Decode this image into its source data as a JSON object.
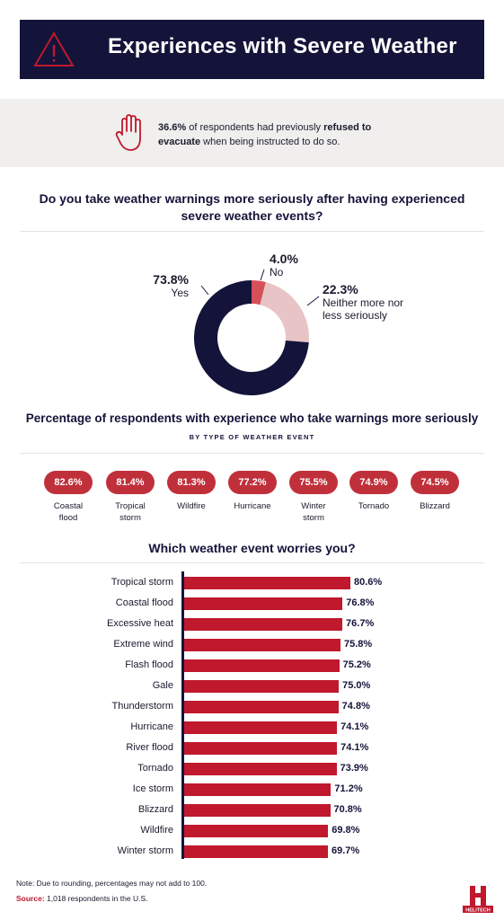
{
  "header": {
    "title": "Experiences with Severe Weather"
  },
  "callout": {
    "stat": "36.6%",
    "text_before": " of respondents had previously ",
    "bold_phrase": "refused to evacuate",
    "text_after": " when being instructed to do so."
  },
  "colors": {
    "navy": "#14143a",
    "red": "#c0182d",
    "pill_red": "#c0303b",
    "light_pink": "#e8c4c6",
    "donut_red": "#d6505a"
  },
  "chart_data": [
    {
      "type": "pie",
      "title": "Do you take weather warnings more seriously after having experienced severe weather events?",
      "slices": [
        {
          "label": "Yes",
          "value": 73.8,
          "display": "73.8%",
          "color": "#14143a"
        },
        {
          "label": "No",
          "value": 4.0,
          "display": "4.0%",
          "color": "#d6505a"
        },
        {
          "label": "Neither more nor less seriously",
          "value": 22.3,
          "display": "22.3%",
          "color": "#e8c4c6"
        }
      ]
    },
    {
      "type": "table",
      "title": "Percentage of respondents with experience who take warnings more seriously",
      "subtitle": "BY TYPE OF WEATHER EVENT",
      "items": [
        {
          "value": "82.6%",
          "label": "Coastal flood"
        },
        {
          "value": "81.4%",
          "label": "Tropical storm"
        },
        {
          "value": "81.3%",
          "label": "Wildfire"
        },
        {
          "value": "77.2%",
          "label": "Hurricane"
        },
        {
          "value": "75.5%",
          "label": "Winter storm"
        },
        {
          "value": "74.9%",
          "label": "Tornado"
        },
        {
          "value": "74.5%",
          "label": "Blizzard"
        }
      ]
    },
    {
      "type": "bar",
      "title": "Which weather event worries you?",
      "categories": [
        "Tropical storm",
        "Coastal flood",
        "Excessive heat",
        "Extreme wind",
        "Flash flood",
        "Gale",
        "Thunderstorm",
        "Hurricane",
        "River flood",
        "Tornado",
        "Ice storm",
        "Blizzard",
        "Wildfire",
        "Winter storm"
      ],
      "values": [
        80.6,
        76.8,
        76.7,
        75.8,
        75.2,
        75.0,
        74.8,
        74.1,
        74.1,
        73.9,
        71.2,
        70.8,
        69.8,
        69.7
      ],
      "labels": [
        "80.6%",
        "76.8%",
        "76.7%",
        "75.8%",
        "75.2%",
        "75.0%",
        "74.8%",
        "74.1%",
        "74.1%",
        "73.9%",
        "71.2%",
        "70.8%",
        "69.8%",
        "69.7%"
      ]
    }
  ],
  "footer": {
    "note": "Note: Due to rounding, percentages may not add to 100.",
    "source_label": "Source:",
    "source_text": " 1,018 respondents in the U.S.",
    "logo_text": "HELITECH"
  }
}
